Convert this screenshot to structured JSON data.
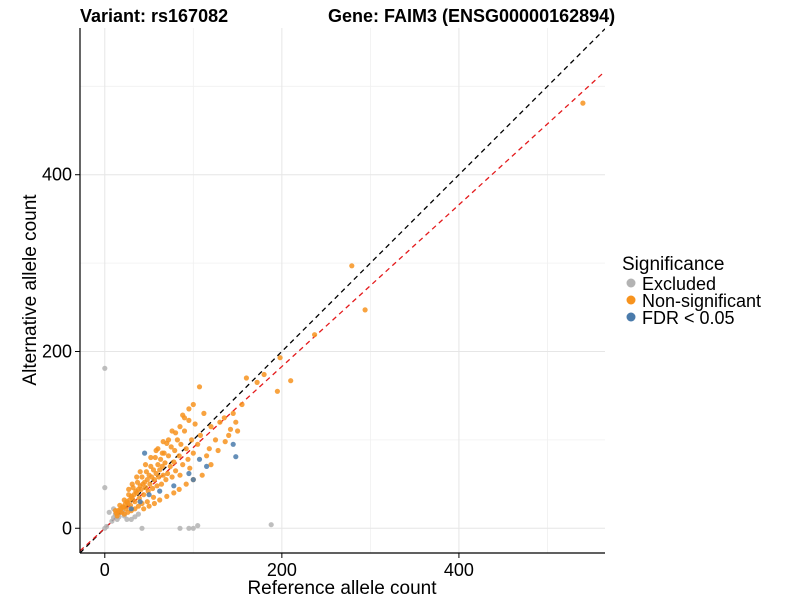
{
  "chart_data": {
    "type": "scatter",
    "title_left": "Variant: rs167082",
    "title_right": "Gene: FAIM3 (ENSG00000162894)",
    "xlabel": "Reference allele count",
    "ylabel": "Alternative allele count",
    "xlim": [
      -28,
      565
    ],
    "ylim": [
      -28,
      566
    ],
    "xticks": [
      0,
      200,
      400
    ],
    "yticks": [
      0,
      200,
      400
    ],
    "grid": true,
    "legend": {
      "title": "Significance",
      "placement": "right",
      "entries": [
        {
          "label": "Excluded",
          "color": "#b3b3b3"
        },
        {
          "label": "Non-significant",
          "color": "#f7931e"
        },
        {
          "label": "FDR < 0.05",
          "color": "#4a7bab"
        }
      ]
    },
    "reference_lines": [
      {
        "name": "identity",
        "slope": 1.0,
        "intercept": 0,
        "color": "#000000",
        "style": "dashed"
      },
      {
        "name": "fit",
        "slope": 0.915,
        "intercept": 0,
        "color": "#e41a1c",
        "style": "dashed"
      }
    ],
    "series": [
      {
        "name": "Excluded",
        "color": "#b3b3b3",
        "points": [
          [
            0,
            181
          ],
          [
            0,
            46
          ],
          [
            0,
            0
          ],
          [
            2,
            2
          ],
          [
            5,
            18
          ],
          [
            8,
            8
          ],
          [
            10,
            12
          ],
          [
            12,
            16
          ],
          [
            14,
            10
          ],
          [
            16,
            13
          ],
          [
            20,
            19
          ],
          [
            25,
            10
          ],
          [
            30,
            10
          ],
          [
            34,
            13
          ],
          [
            38,
            16
          ],
          [
            42,
            0
          ],
          [
            85,
            0
          ],
          [
            95,
            0
          ],
          [
            100,
            0
          ],
          [
            105,
            3
          ],
          [
            188,
            4
          ],
          [
            10,
            22
          ],
          [
            18,
            20
          ],
          [
            22,
            14
          ]
        ]
      },
      {
        "name": "Non-significant",
        "color": "#f7931e",
        "points": [
          [
            540,
            481
          ],
          [
            279,
            297
          ],
          [
            294,
            247
          ],
          [
            237,
            219
          ],
          [
            210,
            167
          ],
          [
            198,
            193
          ],
          [
            195,
            155
          ],
          [
            180,
            174
          ],
          [
            172,
            165
          ],
          [
            160,
            170
          ],
          [
            155,
            140
          ],
          [
            150,
            110
          ],
          [
            145,
            130
          ],
          [
            140,
            105
          ],
          [
            135,
            125
          ],
          [
            130,
            120
          ],
          [
            125,
            100
          ],
          [
            120,
            115
          ],
          [
            118,
            90
          ],
          [
            115,
            82
          ],
          [
            112,
            130
          ],
          [
            108,
            105
          ],
          [
            107,
            160
          ],
          [
            105,
            95
          ],
          [
            102,
            118
          ],
          [
            100,
            85
          ],
          [
            98,
            100
          ],
          [
            96,
            68
          ],
          [
            95,
            122
          ],
          [
            94,
            78
          ],
          [
            92,
            90
          ],
          [
            90,
            110
          ],
          [
            88,
            72
          ],
          [
            86,
            95
          ],
          [
            85,
            60
          ],
          [
            84,
            82
          ],
          [
            82,
            100
          ],
          [
            80,
            65
          ],
          [
            79,
            88
          ],
          [
            78,
            75
          ],
          [
            76,
            58
          ],
          [
            75,
            92
          ],
          [
            74,
            70
          ],
          [
            72,
            82
          ],
          [
            71,
            62
          ],
          [
            70,
            96
          ],
          [
            69,
            55
          ],
          [
            68,
            74
          ],
          [
            67,
            85
          ],
          [
            66,
            60
          ],
          [
            65,
            70
          ],
          [
            64,
            50
          ],
          [
            63,
            78
          ],
          [
            62,
            66
          ],
          [
            61,
            58
          ],
          [
            60,
            72
          ],
          [
            59,
            48
          ],
          [
            58,
            62
          ],
          [
            57,
            80
          ],
          [
            56,
            55
          ],
          [
            55,
            66
          ],
          [
            54,
            45
          ],
          [
            53,
            58
          ],
          [
            52,
            70
          ],
          [
            51,
            50
          ],
          [
            50,
            60
          ],
          [
            49,
            42
          ],
          [
            48,
            55
          ],
          [
            47,
            64
          ],
          [
            46,
            46
          ],
          [
            45,
            52
          ],
          [
            44,
            38
          ],
          [
            43,
            50
          ],
          [
            42,
            58
          ],
          [
            41,
            44
          ],
          [
            40,
            48
          ],
          [
            39,
            34
          ],
          [
            38,
            44
          ],
          [
            37,
            52
          ],
          [
            36,
            40
          ],
          [
            35,
            42
          ],
          [
            34,
            30
          ],
          [
            33,
            38
          ],
          [
            32,
            46
          ],
          [
            31,
            34
          ],
          [
            30,
            36
          ],
          [
            29,
            26
          ],
          [
            28,
            32
          ],
          [
            27,
            38
          ],
          [
            26,
            28
          ],
          [
            25,
            30
          ],
          [
            24,
            22
          ],
          [
            23,
            27
          ],
          [
            22,
            32
          ],
          [
            21,
            24
          ],
          [
            20,
            24
          ],
          [
            19,
            18
          ],
          [
            18,
            22
          ],
          [
            17,
            26
          ],
          [
            16,
            18
          ],
          [
            15,
            20
          ],
          [
            14,
            14
          ],
          [
            13,
            17
          ],
          [
            12,
            20
          ],
          [
            88,
            128
          ],
          [
            76,
            110
          ],
          [
            66,
            98
          ],
          [
            58,
            88
          ],
          [
            52,
            80
          ],
          [
            46,
            72
          ],
          [
            40,
            64
          ],
          [
            36,
            58
          ],
          [
            31,
            50
          ],
          [
            27,
            44
          ],
          [
            110,
            60
          ],
          [
            100,
            55
          ],
          [
            92,
            50
          ],
          [
            84,
            44
          ],
          [
            78,
            40
          ],
          [
            70,
            36
          ],
          [
            62,
            32
          ],
          [
            56,
            28
          ],
          [
            50,
            25
          ],
          [
            44,
            22
          ],
          [
            120,
            72
          ],
          [
            128,
            88
          ],
          [
            136,
            98
          ],
          [
            142,
            112
          ],
          [
            148,
            120
          ],
          [
            60,
            90
          ],
          [
            65,
            85
          ],
          [
            72,
            100
          ],
          [
            80,
            108
          ],
          [
            85,
            115
          ],
          [
            90,
            125
          ],
          [
            95,
            135
          ],
          [
            100,
            140
          ],
          [
            55,
            35
          ],
          [
            48,
            30
          ],
          [
            42,
            28
          ],
          [
            38,
            25
          ],
          [
            34,
            22
          ],
          [
            30,
            20
          ],
          [
            26,
            18
          ],
          [
            22,
            16
          ]
        ]
      },
      {
        "name": "FDR < 0.05",
        "color": "#4a7bab",
        "points": [
          [
            148,
            81
          ],
          [
            145,
            95
          ],
          [
            115,
            70
          ],
          [
            107,
            78
          ],
          [
            100,
            55
          ],
          [
            95,
            62
          ],
          [
            78,
            48
          ],
          [
            62,
            42
          ],
          [
            50,
            38
          ],
          [
            45,
            85
          ],
          [
            40,
            30
          ],
          [
            30,
            22
          ]
        ]
      }
    ]
  }
}
